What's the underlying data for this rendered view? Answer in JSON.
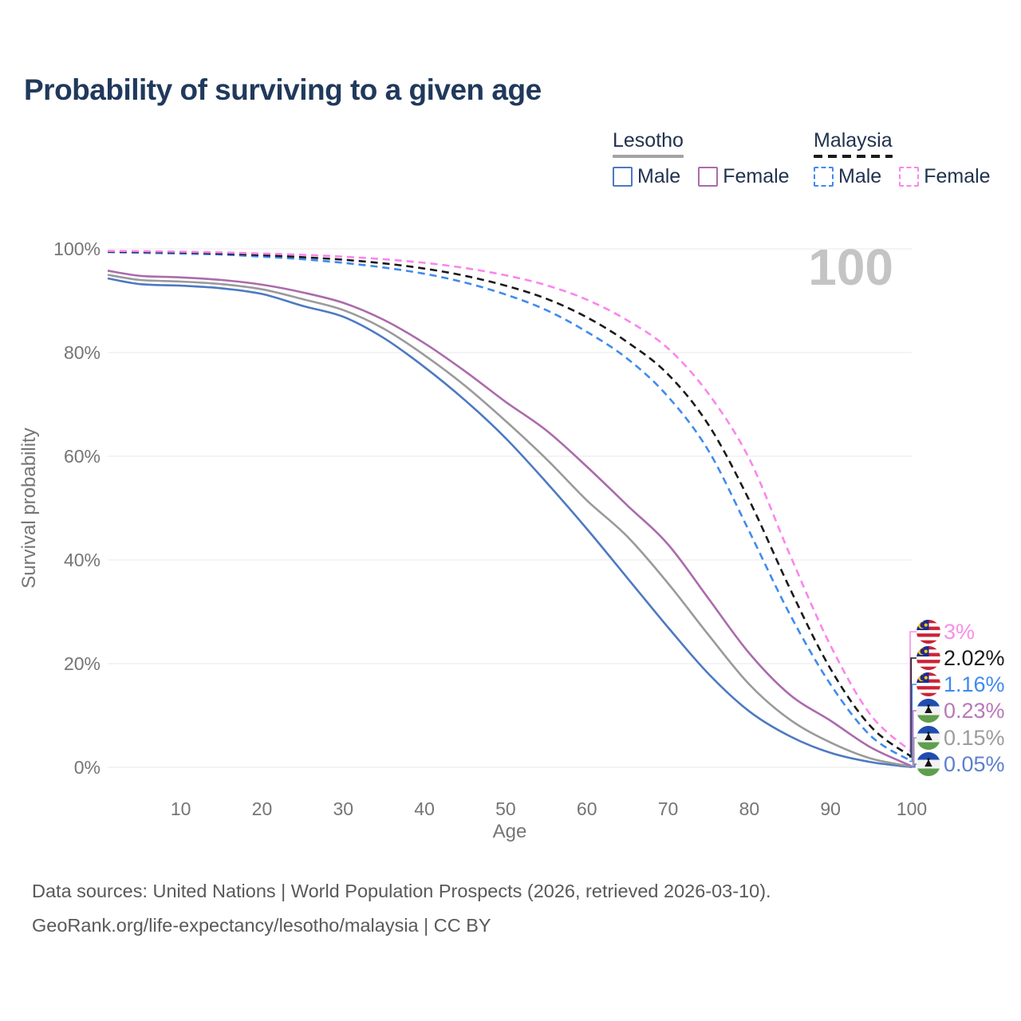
{
  "title": "Probability of surviving to a given age",
  "age_counter": "100",
  "legend": {
    "groups": [
      {
        "label": "Lesotho",
        "line_style": "solid",
        "underline_color": "#a3a3a3",
        "items": [
          {
            "label": "Male",
            "color": "#4d79c2",
            "dashed": false
          },
          {
            "label": "Female",
            "color": "#ab6bab",
            "dashed": false
          }
        ]
      },
      {
        "label": "Malaysia",
        "line_style": "dashed",
        "underline_color": "#1a1a1a",
        "items": [
          {
            "label": "Male",
            "color": "#3f8af0",
            "dashed": true
          },
          {
            "label": "Female",
            "color": "#fb85ec",
            "dashed": true
          }
        ]
      }
    ]
  },
  "chart_data": {
    "type": "line",
    "title": "Probability of surviving to a given age",
    "xlabel": "Age",
    "ylabel": "Survival probability",
    "xlim": [
      1,
      100
    ],
    "ylim": [
      0,
      100
    ],
    "grid": true,
    "x_ticks": [
      10,
      20,
      30,
      40,
      50,
      60,
      70,
      80,
      90,
      100
    ],
    "y_ticks": [
      0,
      20,
      40,
      60,
      80,
      100
    ],
    "y_tick_suffix": "%",
    "grid_color": "#e8e8e8",
    "tick_color": "#757575",
    "watermark": "100",
    "watermark_color": "#c4c4c4",
    "x": [
      1,
      5,
      10,
      15,
      20,
      25,
      30,
      35,
      40,
      45,
      50,
      55,
      60,
      65,
      70,
      75,
      80,
      85,
      90,
      95,
      100
    ],
    "series": [
      {
        "name": "Lesotho Male",
        "country": "Lesotho",
        "sex": "Male",
        "flag": "lesotho",
        "color": "#4d79c2",
        "dashed": false,
        "end_label": "0.05%",
        "end_label_color": "#5b7fd0",
        "values": [
          94.3,
          93.2,
          92.9,
          92.4,
          91.3,
          89.0,
          86.9,
          82.8,
          77.2,
          70.8,
          63.5,
          55.0,
          46.0,
          36.5,
          27.0,
          18.0,
          10.8,
          6.0,
          2.8,
          1.0,
          0.05
        ]
      },
      {
        "name": "Lesotho Both sexes",
        "country": "Lesotho",
        "sex": "Both",
        "flag": "lesotho",
        "color": "#9a9a9a",
        "dashed": false,
        "end_label": "0.15%",
        "end_label_color": "#9c9c9c",
        "values": [
          95.0,
          94.0,
          93.7,
          93.2,
          92.2,
          90.3,
          88.2,
          84.6,
          79.5,
          73.6,
          66.8,
          59.5,
          51.5,
          44.5,
          35.5,
          25.5,
          16.0,
          9.2,
          4.8,
          1.7,
          0.15
        ]
      },
      {
        "name": "Lesotho Female",
        "country": "Lesotho",
        "sex": "Female",
        "flag": "lesotho",
        "color": "#ab6bab",
        "dashed": false,
        "end_label": "0.23%",
        "end_label_color": "#b878b8",
        "values": [
          95.8,
          94.8,
          94.5,
          94.0,
          93.1,
          91.6,
          89.6,
          86.3,
          81.8,
          76.4,
          70.5,
          65.0,
          58.0,
          50.5,
          43.0,
          32.5,
          22.0,
          14.0,
          9.0,
          3.8,
          0.23
        ]
      },
      {
        "name": "Malaysia Male",
        "country": "Malaysia",
        "sex": "Male",
        "flag": "malaysia",
        "color": "#3f8af0",
        "dashed": true,
        "end_label": "1.16%",
        "end_label_color": "#3f8af0",
        "values": [
          99.4,
          99.25,
          99.1,
          98.9,
          98.5,
          98.0,
          97.3,
          96.4,
          95.2,
          93.5,
          91.2,
          88.2,
          84.0,
          78.8,
          71.5,
          61.0,
          45.5,
          29.5,
          16.0,
          6.0,
          1.16
        ]
      },
      {
        "name": "Malaysia Both sexes",
        "country": "Malaysia",
        "sex": "Both",
        "flag": "malaysia",
        "color": "#1a1a1a",
        "dashed": true,
        "end_label": "2.02%",
        "end_label_color": "#1a1a1a",
        "values": [
          99.5,
          99.4,
          99.3,
          99.1,
          98.8,
          98.4,
          97.9,
          97.2,
          96.2,
          94.8,
          92.9,
          90.4,
          86.8,
          82.0,
          75.8,
          66.0,
          51.5,
          34.5,
          19.0,
          7.8,
          2.02
        ]
      },
      {
        "name": "Malaysia Female",
        "country": "Malaysia",
        "sex": "Female",
        "flag": "malaysia",
        "color": "#fb85ec",
        "dashed": true,
        "end_label": "3%",
        "end_label_color": "#f78fe7",
        "values": [
          99.6,
          99.55,
          99.45,
          99.3,
          99.1,
          98.85,
          98.5,
          98.0,
          97.3,
          96.3,
          94.9,
          93.0,
          90.2,
          86.2,
          80.8,
          72.0,
          59.5,
          41.0,
          23.5,
          10.0,
          3.0
        ]
      }
    ]
  },
  "footer": {
    "line1": "Data sources: United Nations | World Population Prospects (2026, retrieved 2026-03-10).",
    "line2": "GeoRank.org/life-expectancy/lesotho/malaysia | CC BY"
  }
}
